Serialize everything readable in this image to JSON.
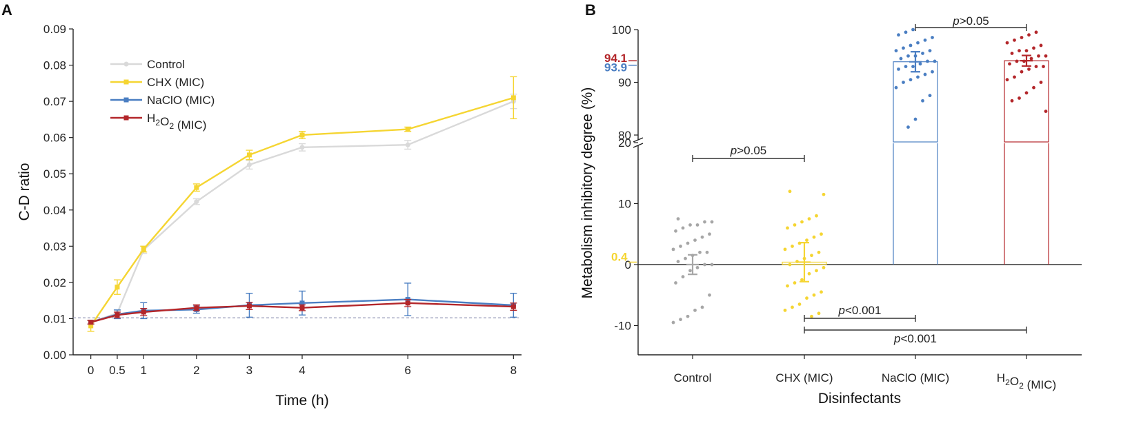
{
  "colors": {
    "control": "#d9d9d9",
    "control_dark": "#a6a6a6",
    "chx": "#f5d532",
    "naclo": "#4a7ec2",
    "h2o2": "#b3262a",
    "axis": "#222222",
    "baseline": "#9a9a9a"
  },
  "chart_data": [
    {
      "panel": "A",
      "type": "line",
      "xlabel": "Time (h)",
      "ylabel": "C-D ratio",
      "x": [
        0,
        0.5,
        1,
        2,
        3,
        4,
        6,
        8
      ],
      "x_tick_labels": [
        "0",
        "0.5",
        "1",
        "2",
        "3",
        "4",
        "6",
        "8"
      ],
      "xlim": [
        -0.1,
        8.1
      ],
      "ylim": [
        0,
        0.09
      ],
      "y_ticks": [
        0,
        0.01,
        0.02,
        0.03,
        0.04,
        0.05,
        0.06,
        0.07,
        0.08,
        0.09
      ],
      "y_tick_labels": [
        "0.00",
        "0.01",
        "0.02",
        "0.03",
        "0.04",
        "0.05",
        "0.06",
        "0.07",
        "0.08",
        "0.09"
      ],
      "reference_line_y": 0.0102,
      "legend": {
        "position": "top-left",
        "entries": [
          "Control",
          "CHX (MIC)",
          "NaClO (MIC)",
          "H2O2 (MIC)"
        ]
      },
      "series": [
        {
          "name": "Control",
          "color_key": "control",
          "marker": "circle",
          "values": [
            0.009,
            0.0115,
            0.029,
            0.0423,
            0.0525,
            0.0573,
            0.058,
            0.07
          ],
          "errors": [
            0.0005,
            0.0008,
            0.001,
            0.0008,
            0.0012,
            0.001,
            0.0012,
            0.002
          ]
        },
        {
          "name": "CHX (MIC)",
          "color_key": "chx",
          "marker": "square",
          "values": [
            0.008,
            0.0187,
            0.0292,
            0.0462,
            0.0552,
            0.0607,
            0.0623,
            0.071
          ],
          "errors": [
            0.0015,
            0.002,
            0.0008,
            0.001,
            0.0013,
            0.001,
            0.0006,
            0.0058
          ]
        },
        {
          "name": "NaClO (MIC)",
          "color_key": "naclo",
          "marker": "square",
          "values": [
            0.009,
            0.0112,
            0.0122,
            0.0125,
            0.0137,
            0.0143,
            0.0153,
            0.0137
          ],
          "errors": [
            0.0005,
            0.0012,
            0.0022,
            0.001,
            0.0033,
            0.0033,
            0.0045,
            0.0033
          ]
        },
        {
          "name": "H2O2 (MIC)",
          "color_key": "h2o2",
          "marker": "square",
          "values": [
            0.009,
            0.011,
            0.0118,
            0.013,
            0.0135,
            0.013,
            0.0143,
            0.0133
          ],
          "errors": [
            0.0005,
            0.0008,
            0.001,
            0.0008,
            0.001,
            0.0008,
            0.001,
            0.001
          ]
        }
      ]
    },
    {
      "panel": "B",
      "type": "bar",
      "xlabel": "Disinfectants",
      "ylabel": "Metabolism inhibitory degree (%)",
      "categories": [
        "Control",
        "CHX (MIC)",
        "NaClO (MIC)",
        "H2O2 (MIC)"
      ],
      "y_axis_break": [
        20,
        80
      ],
      "ylim_lower": [
        -15,
        20
      ],
      "ylim_upper": [
        80,
        100
      ],
      "y_ticks": [
        -10,
        0,
        10,
        20,
        80,
        90,
        100
      ],
      "y_tick_labels": [
        "-10",
        "0",
        "10",
        "20",
        "80",
        "90",
        "100"
      ],
      "values": [
        0,
        0.4,
        93.9,
        94.1
      ],
      "errors": [
        1.6,
        3.2,
        1.9,
        1.0
      ],
      "color_keys": [
        "control_dark",
        "chx",
        "naclo",
        "h2o2"
      ],
      "value_labels": [
        {
          "text": "0.4",
          "color_key": "chx"
        },
        {
          "text": "94.1",
          "color_key": "h2o2"
        },
        {
          "text": "93.9",
          "color_key": "naclo"
        }
      ],
      "points": [
        [
          -9.5,
          -9,
          -8.5,
          -7.5,
          -7,
          -5,
          -3,
          -2,
          -1,
          -0.5,
          0,
          0,
          0.5,
          1,
          1.5,
          2,
          2,
          2.5,
          3,
          3.5,
          4,
          4.5,
          5,
          5.5,
          6,
          6.5,
          6.5,
          7,
          7,
          7.5
        ],
        [
          -8.5,
          -8,
          -7.5,
          -7,
          -6.5,
          -5.5,
          -5,
          -4.5,
          -3.5,
          -3,
          -2.5,
          -1.5,
          -1,
          -0.5,
          0,
          0.5,
          1,
          1.5,
          2,
          2.5,
          3,
          3.5,
          4,
          4.5,
          5,
          6,
          6.5,
          7,
          7.5,
          8,
          11.5,
          12
        ],
        [
          81.5,
          83,
          86.5,
          87.5,
          89,
          90,
          90.5,
          91,
          91.5,
          92,
          92.5,
          93,
          93,
          93.5,
          94,
          94,
          94.5,
          95,
          95,
          95.5,
          96,
          96,
          96.5,
          97,
          97.5,
          98,
          98.5,
          99,
          99.5,
          100
        ],
        [
          84.5,
          86.5,
          87,
          88,
          89,
          90,
          90.5,
          91,
          92,
          92.5,
          93,
          93,
          93.5,
          94,
          94,
          94.5,
          95,
          95,
          95.5,
          96,
          96,
          96.5,
          97,
          97.5,
          98,
          98.5,
          99,
          99.5
        ]
      ],
      "comparisons": [
        {
          "groups": [
            "Control",
            "CHX (MIC)"
          ],
          "label": "p>0.05"
        },
        {
          "groups": [
            "NaClO (MIC)",
            "H2O2 (MIC)"
          ],
          "label": "p>0.05"
        },
        {
          "groups": [
            "CHX (MIC)",
            "NaClO (MIC)"
          ],
          "label": "p<0.001"
        },
        {
          "groups": [
            "CHX (MIC)",
            "H2O2 (MIC)"
          ],
          "label": "p<0.001"
        }
      ]
    }
  ],
  "panels": {
    "a_label": "A",
    "b_label": "B"
  }
}
